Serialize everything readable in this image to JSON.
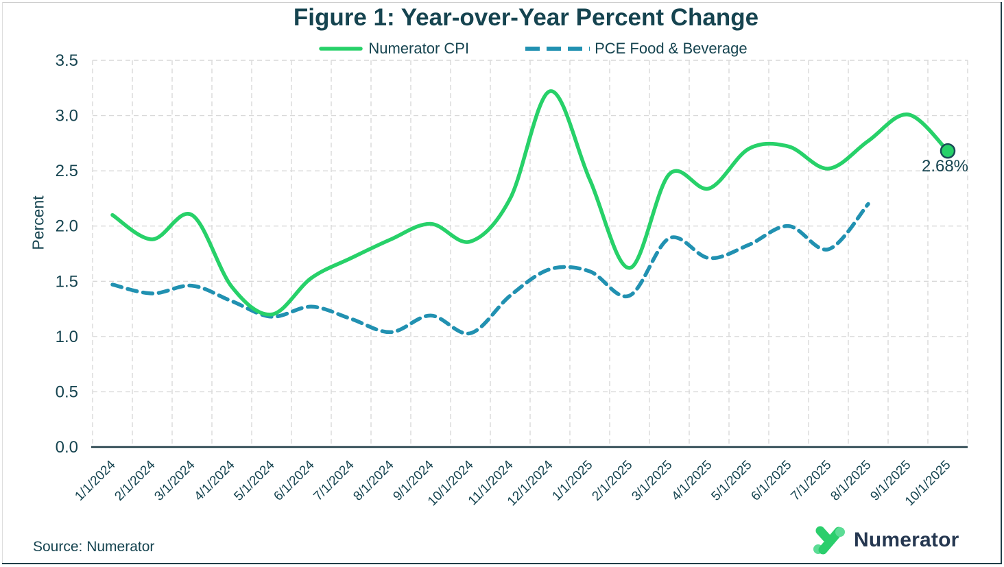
{
  "source": "Source: Numerator",
  "logo": {
    "wordmark": "Numerator"
  },
  "chart_data": {
    "type": "line",
    "title": "Figure 1: Year-over-Year Percent Change",
    "xlabel": "",
    "ylabel": "Percent",
    "ylim": [
      0,
      3.5
    ],
    "y_tick_labels": [
      "0.0",
      "0.5",
      "1.0",
      "1.5",
      "2.0",
      "2.5",
      "3.0",
      "3.5"
    ],
    "grid": true,
    "legend_position": "top",
    "categories": [
      "1/1/2024",
      "2/1/2024",
      "3/1/2024",
      "4/1/2024",
      "5/1/2024",
      "6/1/2024",
      "7/1/2024",
      "8/1/2024",
      "9/1/2024",
      "10/1/2024",
      "11/1/2024",
      "12/1/2024",
      "1/1/2025",
      "2/1/2025",
      "3/1/2025",
      "4/1/2025",
      "5/1/2025",
      "6/1/2025",
      "7/1/2025",
      "8/1/2025",
      "9/1/2025",
      "10/1/2025"
    ],
    "series": [
      {
        "name": "Numerator CPI",
        "color": "#27d169",
        "line_style": "solid",
        "values": [
          2.1,
          1.88,
          2.1,
          1.45,
          1.2,
          1.53,
          1.71,
          1.88,
          2.02,
          1.86,
          2.25,
          3.22,
          2.42,
          1.62,
          2.47,
          2.34,
          2.7,
          2.72,
          2.52,
          2.77,
          3.01,
          2.68
        ]
      },
      {
        "name": "PCE Food & Beverage",
        "color": "#2191b1",
        "line_style": "dashed",
        "values": [
          1.47,
          1.39,
          1.46,
          1.32,
          1.18,
          1.27,
          1.16,
          1.04,
          1.19,
          1.03,
          1.37,
          1.61,
          1.59,
          1.37,
          1.89,
          1.71,
          1.83,
          2.0,
          1.79,
          2.2
        ]
      }
    ],
    "end_label": "2.68%"
  },
  "colors": {
    "text": "#164450",
    "grid": "#d9d9d9",
    "axis": "#203d47",
    "marker_stroke": "#1b4b57",
    "logo_green": "#2bce6c",
    "logo_green_light": "#5cdc95"
  }
}
